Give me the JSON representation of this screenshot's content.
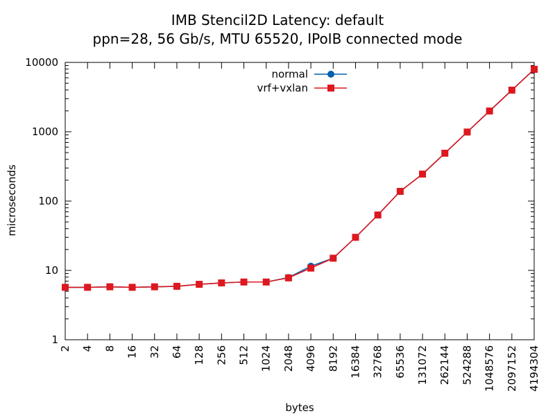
{
  "chart_data": {
    "type": "line",
    "title": "IMB Stencil2D Latency: default",
    "subtitle": "ppn=28, 56 Gb/s, MTU 65520, IPoIB connected mode",
    "xlabel": "bytes",
    "ylabel": "microseconds",
    "x_scale": "log2",
    "y_scale": "log10",
    "xlim": [
      2,
      4194304
    ],
    "ylim": [
      1,
      10000
    ],
    "x": [
      2,
      4,
      8,
      16,
      32,
      64,
      128,
      256,
      512,
      1024,
      2048,
      4096,
      8192,
      16384,
      32768,
      65536,
      131072,
      262144,
      524288,
      1048576,
      2097152,
      4194304
    ],
    "x_tick_labels": [
      "2",
      "4",
      "8",
      "16",
      "32",
      "64",
      "128",
      "256",
      "512",
      "1024",
      "2048",
      "4096",
      "8192",
      "16384",
      "32768",
      "65536",
      "131072",
      "262144",
      "524288",
      "1048576",
      "2097152",
      "4194304"
    ],
    "y_ticks": [
      1,
      10,
      100,
      1000,
      10000
    ],
    "y_tick_labels": [
      "1",
      "10",
      "100",
      "1000",
      "10000"
    ],
    "legend_position": "top-center",
    "grid": false,
    "series": [
      {
        "name": "normal",
        "color": "#0060ad",
        "marker": "circle",
        "values": [
          5.7,
          5.7,
          5.8,
          5.7,
          5.8,
          5.9,
          6.3,
          6.6,
          6.8,
          6.8,
          7.9,
          11.5,
          15.0,
          30.0,
          63.0,
          138.0,
          245.0,
          490.0,
          990.0,
          1990.0,
          3980.0,
          7950.0
        ]
      },
      {
        "name": "vrf+vxlan",
        "color": "#dd181f",
        "marker": "square",
        "values": [
          5.7,
          5.7,
          5.8,
          5.7,
          5.8,
          5.9,
          6.3,
          6.6,
          6.8,
          6.8,
          7.8,
          10.8,
          15.0,
          30.0,
          63.0,
          138.0,
          245.0,
          490.0,
          990.0,
          1990.0,
          3980.0,
          7950.0
        ]
      }
    ]
  }
}
